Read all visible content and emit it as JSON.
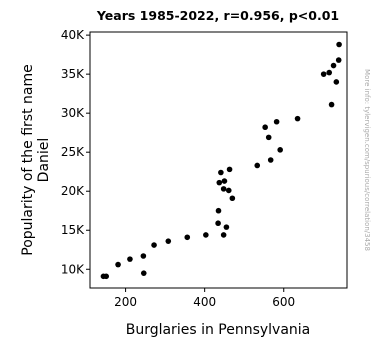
{
  "chart_data": {
    "type": "scatter",
    "title": "Years 1985-2022, r=0.956, p<0.01",
    "xlabel": "Burglaries in Pennsylvania",
    "ylabel_line1": "Popularity of the first name",
    "ylabel_line2": "Daniel",
    "side_note": "More info: tylervigen.com/spurious/correlation/3458",
    "xlim": [
      110,
      760
    ],
    "ylim": [
      7600,
      40400
    ],
    "x_ticks": [
      200,
      400,
      600
    ],
    "x_tick_labels": [
      "200",
      "400",
      "600"
    ],
    "y_ticks": [
      10000,
      15000,
      20000,
      25000,
      30000,
      35000,
      40000
    ],
    "y_tick_labels": [
      "10K",
      "15K",
      "20K",
      "25K",
      "30K",
      "35K",
      "40K"
    ],
    "grid": false,
    "point_color": "#000000",
    "points": [
      {
        "x": 740,
        "y": 38800
      },
      {
        "x": 739,
        "y": 36800
      },
      {
        "x": 726,
        "y": 36100
      },
      {
        "x": 701,
        "y": 35000
      },
      {
        "x": 715,
        "y": 35200
      },
      {
        "x": 733,
        "y": 34000
      },
      {
        "x": 721,
        "y": 31100
      },
      {
        "x": 635,
        "y": 29300
      },
      {
        "x": 582,
        "y": 28900
      },
      {
        "x": 553,
        "y": 28200
      },
      {
        "x": 562,
        "y": 26900
      },
      {
        "x": 591,
        "y": 25300
      },
      {
        "x": 567,
        "y": 24000
      },
      {
        "x": 533,
        "y": 23300
      },
      {
        "x": 463,
        "y": 22800
      },
      {
        "x": 441,
        "y": 22400
      },
      {
        "x": 437,
        "y": 21100
      },
      {
        "x": 450,
        "y": 21300
      },
      {
        "x": 448,
        "y": 20300
      },
      {
        "x": 461,
        "y": 20100
      },
      {
        "x": 470,
        "y": 19100
      },
      {
        "x": 435,
        "y": 17500
      },
      {
        "x": 434,
        "y": 15900
      },
      {
        "x": 455,
        "y": 15400
      },
      {
        "x": 403,
        "y": 14400
      },
      {
        "x": 448,
        "y": 14400
      },
      {
        "x": 356,
        "y": 14100
      },
      {
        "x": 308,
        "y": 13600
      },
      {
        "x": 272,
        "y": 13100
      },
      {
        "x": 245,
        "y": 11700
      },
      {
        "x": 211,
        "y": 11300
      },
      {
        "x": 181,
        "y": 10600
      },
      {
        "x": 246,
        "y": 9500
      },
      {
        "x": 144,
        "y": 9100
      },
      {
        "x": 151,
        "y": 9100
      }
    ]
  }
}
